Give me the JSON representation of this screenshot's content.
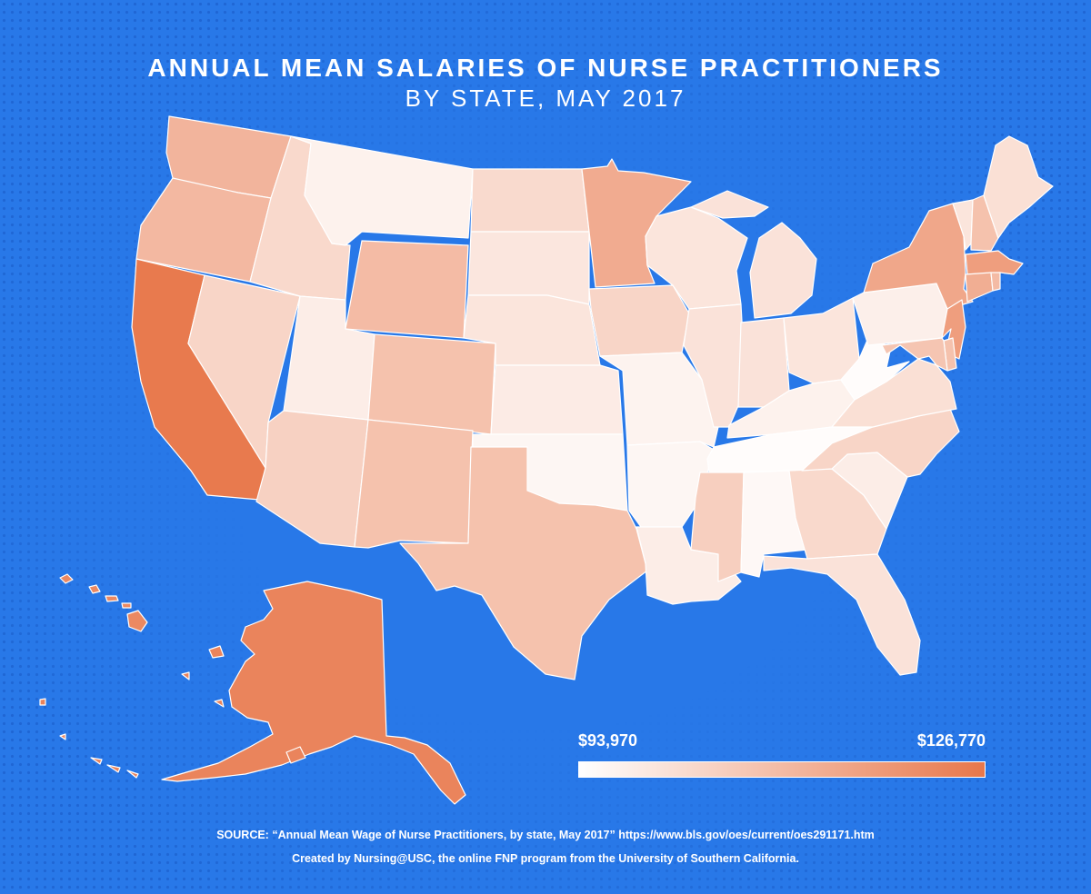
{
  "title": "ANNUAL MEAN SALARIES OF NURSE PRACTITIONERS",
  "subtitle": "BY STATE, MAY 2017",
  "legend": {
    "min_label": "$93,970",
    "max_label": "$126,770",
    "min_value": 93970,
    "max_value": 126770,
    "color_low": "#ffffff",
    "color_high": "#e8774a"
  },
  "source": "SOURCE: “Annual Mean Wage of Nurse Practitioners, by state, May 2017” https://www.bls.gov/oes/current/oes291171.htm",
  "credit": "Created by Nursing@USC, the online FNP program from the University of Southern California.",
  "colors": {
    "background": "#2878e8",
    "border": "#ffffff"
  },
  "states": [
    {
      "id": "WA",
      "intensity": 0.55
    },
    {
      "id": "OR",
      "intensity": 0.52
    },
    {
      "id": "CA",
      "intensity": 1.0
    },
    {
      "id": "NV",
      "intensity": 0.3
    },
    {
      "id": "ID",
      "intensity": 0.27
    },
    {
      "id": "MT",
      "intensity": 0.08
    },
    {
      "id": "WY",
      "intensity": 0.5
    },
    {
      "id": "UT",
      "intensity": 0.12
    },
    {
      "id": "AZ",
      "intensity": 0.33
    },
    {
      "id": "CO",
      "intensity": 0.45
    },
    {
      "id": "NM",
      "intensity": 0.45
    },
    {
      "id": "ND",
      "intensity": 0.26
    },
    {
      "id": "SD",
      "intensity": 0.17
    },
    {
      "id": "NE",
      "intensity": 0.18
    },
    {
      "id": "KS",
      "intensity": 0.13
    },
    {
      "id": "OK",
      "intensity": 0.05
    },
    {
      "id": "TX",
      "intensity": 0.45
    },
    {
      "id": "MN",
      "intensity": 0.62
    },
    {
      "id": "IA",
      "intensity": 0.3
    },
    {
      "id": "MO",
      "intensity": 0.07
    },
    {
      "id": "AR",
      "intensity": 0.05
    },
    {
      "id": "LA",
      "intensity": 0.12
    },
    {
      "id": "WI",
      "intensity": 0.18
    },
    {
      "id": "IL",
      "intensity": 0.2
    },
    {
      "id": "MI",
      "intensity": 0.2
    },
    {
      "id": "IN",
      "intensity": 0.2
    },
    {
      "id": "OH",
      "intensity": 0.18
    },
    {
      "id": "KY",
      "intensity": 0.08
    },
    {
      "id": "TN",
      "intensity": 0.0
    },
    {
      "id": "MS",
      "intensity": 0.35
    },
    {
      "id": "AL",
      "intensity": 0.03
    },
    {
      "id": "GA",
      "intensity": 0.27
    },
    {
      "id": "FL",
      "intensity": 0.2
    },
    {
      "id": "SC",
      "intensity": 0.12
    },
    {
      "id": "NC",
      "intensity": 0.3
    },
    {
      "id": "VA",
      "intensity": 0.22
    },
    {
      "id": "WV",
      "intensity": 0.0
    },
    {
      "id": "PA",
      "intensity": 0.1
    },
    {
      "id": "NY",
      "intensity": 0.65
    },
    {
      "id": "VT",
      "intensity": 0.18
    },
    {
      "id": "NH",
      "intensity": 0.45
    },
    {
      "id": "ME",
      "intensity": 0.22
    },
    {
      "id": "MA",
      "intensity": 0.72
    },
    {
      "id": "CT",
      "intensity": 0.6
    },
    {
      "id": "RI",
      "intensity": 0.5
    },
    {
      "id": "NJ",
      "intensity": 0.72
    },
    {
      "id": "DE",
      "intensity": 0.45
    },
    {
      "id": "MD",
      "intensity": 0.42
    },
    {
      "id": "AK",
      "intensity": 0.92
    },
    {
      "id": "HI",
      "intensity": 0.88
    }
  ]
}
